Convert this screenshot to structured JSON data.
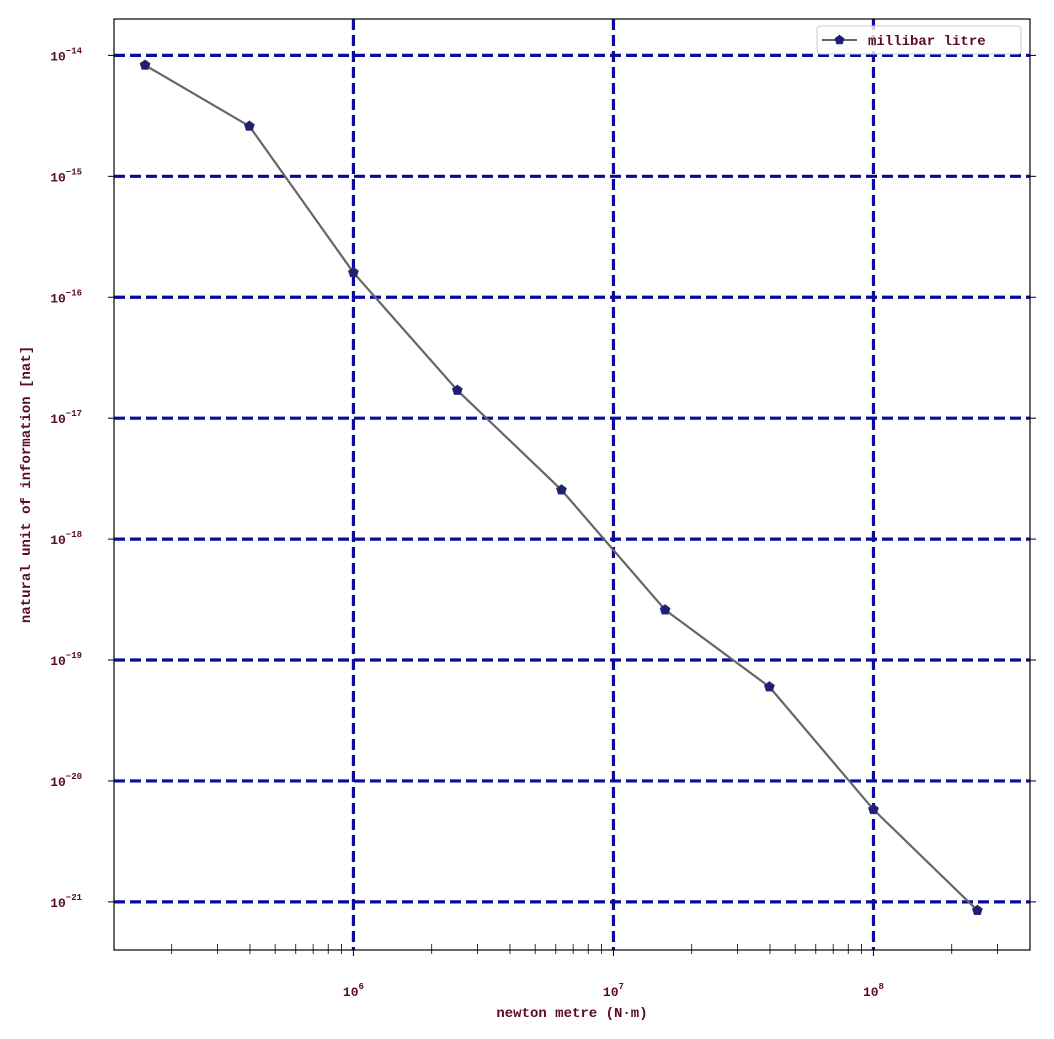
{
  "chart_data": {
    "type": "line",
    "x_scale": "log",
    "y_scale": "log",
    "xlabel": "newton metre (N·m)",
    "ylabel": "natural unit of information [nat]",
    "xlim": [
      120000,
      400000000
    ],
    "ylim": [
      4e-22,
      2e-14
    ],
    "x_ticks": [
      {
        "value": 1000000,
        "base": "10",
        "exp": "6"
      },
      {
        "value": 10000000,
        "base": "10",
        "exp": "7"
      },
      {
        "value": 100000000,
        "base": "10",
        "exp": "8"
      }
    ],
    "y_ticks": [
      {
        "value": 1e-14,
        "base": "10",
        "exp": "−14"
      },
      {
        "value": 1e-15,
        "base": "10",
        "exp": "−15"
      },
      {
        "value": 1e-16,
        "base": "10",
        "exp": "−16"
      },
      {
        "value": 1e-17,
        "base": "10",
        "exp": "−17"
      },
      {
        "value": 1e-18,
        "base": "10",
        "exp": "−18"
      },
      {
        "value": 1e-19,
        "base": "10",
        "exp": "−19"
      },
      {
        "value": 1e-20,
        "base": "10",
        "exp": "−20"
      },
      {
        "value": 1e-21,
        "base": "10",
        "exp": "−21"
      }
    ],
    "grid": true,
    "grid_color": "#0a0a9e",
    "legend_position": "top-right",
    "series": [
      {
        "name": "millibar litre",
        "line_color": "#666666",
        "marker_color": "#1f1f7a",
        "marker": "pentagon",
        "x": [
          158000,
          398000,
          1000000,
          2510000,
          6310000,
          15800000,
          39800000,
          100000000,
          251000000
        ],
        "y": [
          8.3e-15,
          2.6e-15,
          1.6e-16,
          1.7e-17,
          2.55e-18,
          2.6e-19,
          6e-20,
          5.8e-21,
          8.5e-22
        ]
      }
    ]
  }
}
